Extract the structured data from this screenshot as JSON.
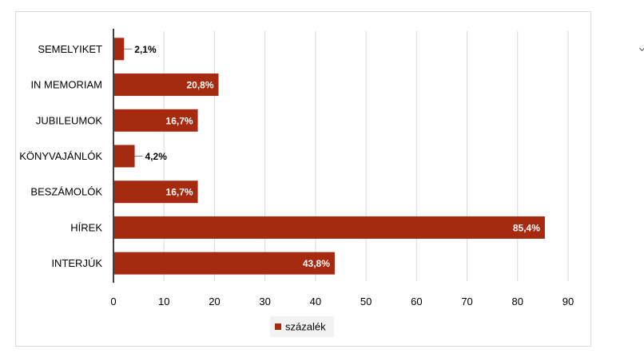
{
  "chart_data": {
    "type": "bar",
    "orientation": "horizontal",
    "categories": [
      "SEMELYIKET",
      "IN MEMORIAM",
      "JUBILEUMOK",
      "KÖNYVAJÁNLÓK",
      "BESZÁMOLÓK",
      "HÍREK",
      "INTERJÚK"
    ],
    "series": [
      {
        "name": "százalék",
        "values": [
          2.1,
          20.8,
          16.7,
          4.2,
          16.7,
          85.4,
          43.8
        ],
        "labels": [
          "2,1%",
          "20,8%",
          "16,7%",
          "4,2%",
          "16,7%",
          "85,4%",
          "43,8%"
        ]
      }
    ],
    "xlim": [
      0,
      90
    ],
    "xticks": [
      "0",
      "10",
      "20",
      "30",
      "40",
      "50",
      "60",
      "70",
      "80",
      "90"
    ],
    "grid": true,
    "legend_position": "bottom",
    "colors": {
      "bar": "#a52a10",
      "grid": "#d9d9d9",
      "axis": "#404040",
      "frame": "#d9d9d9"
    }
  }
}
